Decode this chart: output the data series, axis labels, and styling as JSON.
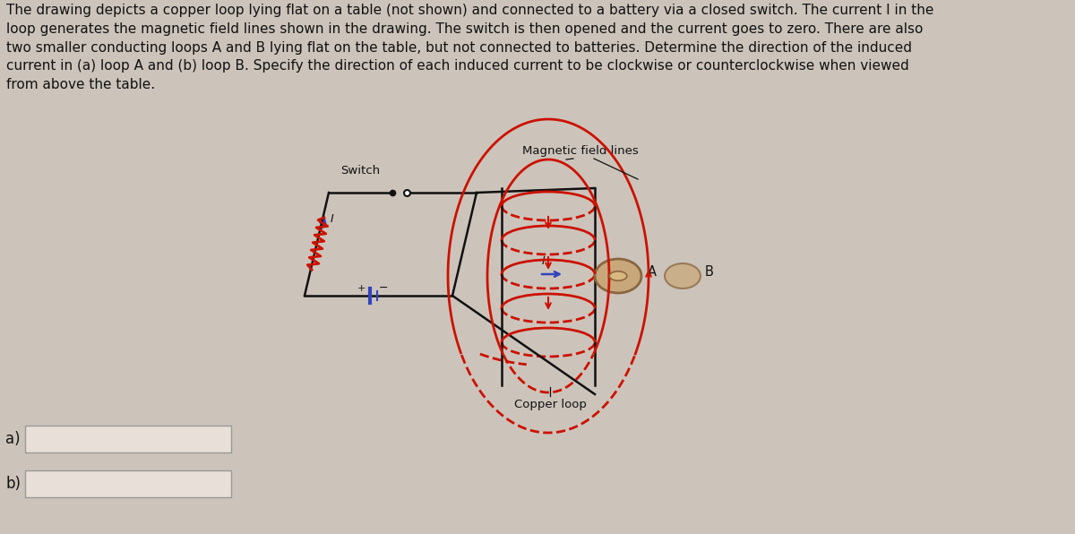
{
  "bg_color": "#ccc4bb",
  "text_color": "#111111",
  "title_text": "The drawing depicts a copper loop lying flat on a table (not shown) and connected to a battery via a closed switch. The current I in the\nloop generates the magnetic field lines shown in the drawing. The switch is then opened and the current goes to zero. There are also\ntwo smaller conducting loops A and B lying flat on the table, but not connected to batteries. Determine the direction of the induced\ncurrent in (a) loop A and (b) loop B. Specify the direction of each induced current to be clockwise or counterclockwise when viewed\nfrom above the table.",
  "label_mag_field": "Magnetic field lines",
  "label_switch": "Switch",
  "label_copper": "Copper loop",
  "label_a": "A",
  "label_b": "B",
  "label_I": "I",
  "red_color": "#cc1100",
  "black_color": "#111111",
  "blue_color": "#3344bb",
  "tan_color": "#c8a87a",
  "tan_dark": "#8a6640",
  "white_color": "#ffffff",
  "gray_color": "#888888",
  "box_edge": "#999999",
  "box_face": "#e8e0d8"
}
